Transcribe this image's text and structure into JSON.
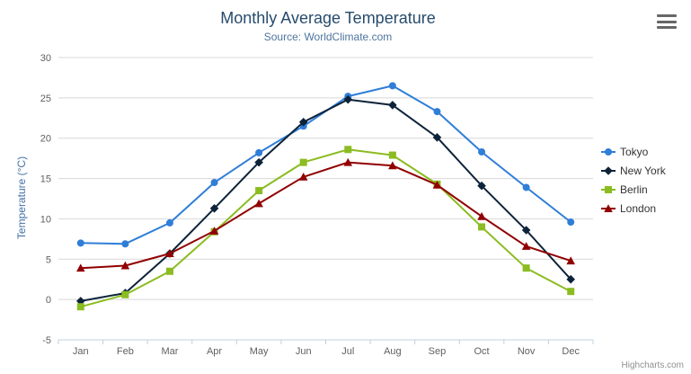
{
  "controls": {
    "export_menu_icon": "hamburger-icon"
  },
  "credits": {
    "label": "Highcharts.com"
  },
  "chart_data": {
    "type": "line",
    "title": "Monthly Average Temperature",
    "subtitle": "Source: WorldClimate.com",
    "categories": [
      "Jan",
      "Feb",
      "Mar",
      "Apr",
      "May",
      "Jun",
      "Jul",
      "Aug",
      "Sep",
      "Oct",
      "Nov",
      "Dec"
    ],
    "xlabel": "",
    "ylabel": "Temperature (°C)",
    "ylim": [
      -5,
      30
    ],
    "ytick_interval": 5,
    "grid": "horizontal",
    "legend_position": "right",
    "series": [
      {
        "name": "Tokyo",
        "color": "#2f7ed8",
        "marker": "circle",
        "values": [
          7.0,
          6.9,
          9.5,
          14.5,
          18.2,
          21.5,
          25.2,
          26.5,
          23.3,
          18.3,
          13.9,
          9.6
        ]
      },
      {
        "name": "New York",
        "color": "#0d233a",
        "marker": "diamond",
        "values": [
          -0.2,
          0.8,
          5.7,
          11.3,
          17.0,
          22.0,
          24.8,
          24.1,
          20.1,
          14.1,
          8.6,
          2.5
        ]
      },
      {
        "name": "Berlin",
        "color": "#8bbc21",
        "marker": "square",
        "values": [
          -0.9,
          0.6,
          3.5,
          8.4,
          13.5,
          17.0,
          18.6,
          17.9,
          14.3,
          9.0,
          3.9,
          1.0
        ]
      },
      {
        "name": "London",
        "color": "#910000",
        "marker": "triangle",
        "values": [
          3.9,
          4.2,
          5.7,
          8.5,
          11.9,
          15.2,
          17.0,
          16.6,
          14.2,
          10.3,
          6.6,
          4.8
        ]
      }
    ],
    "style": {
      "title_color": "#274b6d",
      "subtitle_color": "#4d759e",
      "axis_label_color": "#606060",
      "grid_color": "#D8D8D8",
      "axis_line_color": "#C0D0E0",
      "legend_text_color": "#333333",
      "credits_color": "#909090"
    }
  }
}
